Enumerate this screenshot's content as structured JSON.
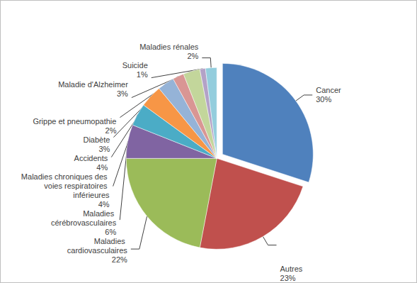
{
  "chart_data": {
    "type": "pie",
    "categories": [
      "Cancer",
      "Autres",
      "Maladies cardiovasculaires",
      "Maladies cérébrovasculaires",
      "Maladies chroniques des voies respiratoires inférieures",
      "Accidents",
      "Diabète",
      "Grippe et pneumopathie",
      "Maladie d'Alzheimer",
      "Suicide",
      "Maladies rénales"
    ],
    "values": [
      30,
      23,
      22,
      6,
      4,
      4,
      3,
      2,
      3,
      1,
      2
    ],
    "value_labels": [
      "30%",
      "23%",
      "22%",
      "6%",
      "4%",
      "4%",
      "3%",
      "2%",
      "3%",
      "1%",
      "2%"
    ],
    "colors": [
      "#4f81bd",
      "#c0504d",
      "#9bbb59",
      "#8064a2",
      "#4bacc6",
      "#f79646",
      "#95b3d7",
      "#d99694",
      "#c3d69b",
      "#b3a2c7",
      "#93cddd"
    ],
    "data_labels": true
  }
}
